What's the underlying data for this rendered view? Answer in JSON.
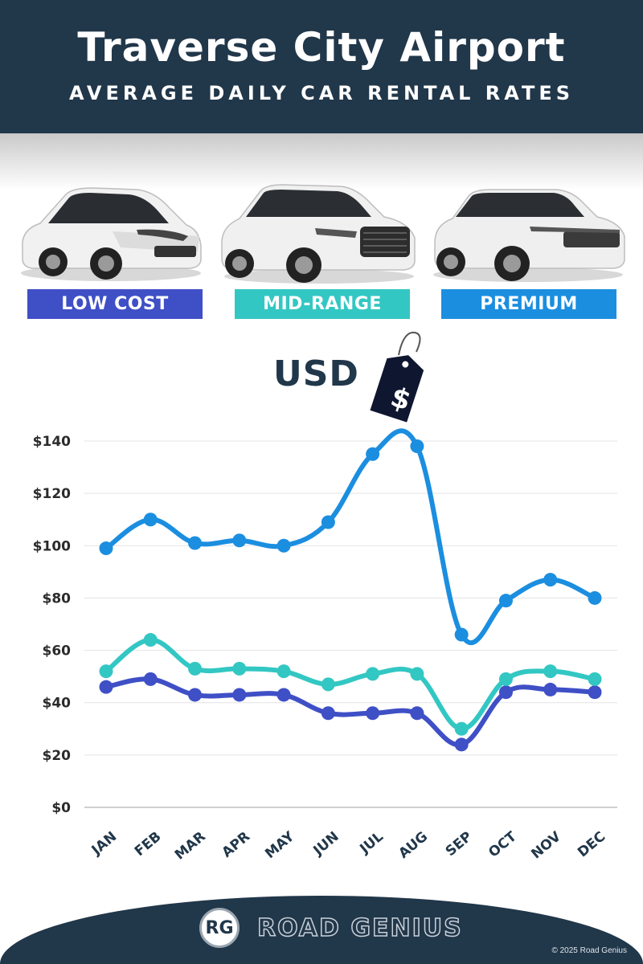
{
  "header": {
    "title": "Traverse City Airport",
    "subtitle": "AVERAGE DAILY CAR RENTAL RATES"
  },
  "categories": [
    {
      "label": "LOW COST",
      "color": "#3f4fc6",
      "car": "compact-hatchback-car-image"
    },
    {
      "label": "MID-RANGE",
      "color": "#33c7c3",
      "car": "midsize-suv-car-image"
    },
    {
      "label": "PREMIUM",
      "color": "#1b8ee0",
      "car": "luxury-suv-car-image"
    }
  ],
  "currency": {
    "label": "USD",
    "icon": "dollar-price-tag-icon",
    "symbol": "$"
  },
  "chart_data": {
    "type": "line",
    "categories": [
      "JAN",
      "FEB",
      "MAR",
      "APR",
      "MAY",
      "JUN",
      "JUL",
      "AUG",
      "SEP",
      "OCT",
      "NOV",
      "DEC"
    ],
    "series": [
      {
        "name": "PREMIUM",
        "color": "#1b8ee0",
        "values": [
          99,
          110,
          101,
          102,
          100,
          109,
          135,
          138,
          66,
          79,
          87,
          80
        ]
      },
      {
        "name": "MID-RANGE",
        "color": "#33c7c3",
        "values": [
          52,
          64,
          53,
          53,
          52,
          47,
          51,
          51,
          30,
          49,
          52,
          49
        ]
      },
      {
        "name": "LOW COST",
        "color": "#3f4fc6",
        "values": [
          46,
          49,
          43,
          43,
          43,
          36,
          36,
          36,
          24,
          44,
          45,
          44
        ]
      }
    ],
    "yticks": [
      "$0",
      "$20",
      "$40",
      "$60",
      "$80",
      "$100",
      "$120",
      "$140"
    ],
    "ylim": [
      0,
      140
    ],
    "grid": true
  },
  "footer": {
    "logo": "RG",
    "brand": "ROAD GENIUS",
    "copyright": "© 2025 Road Genius"
  }
}
